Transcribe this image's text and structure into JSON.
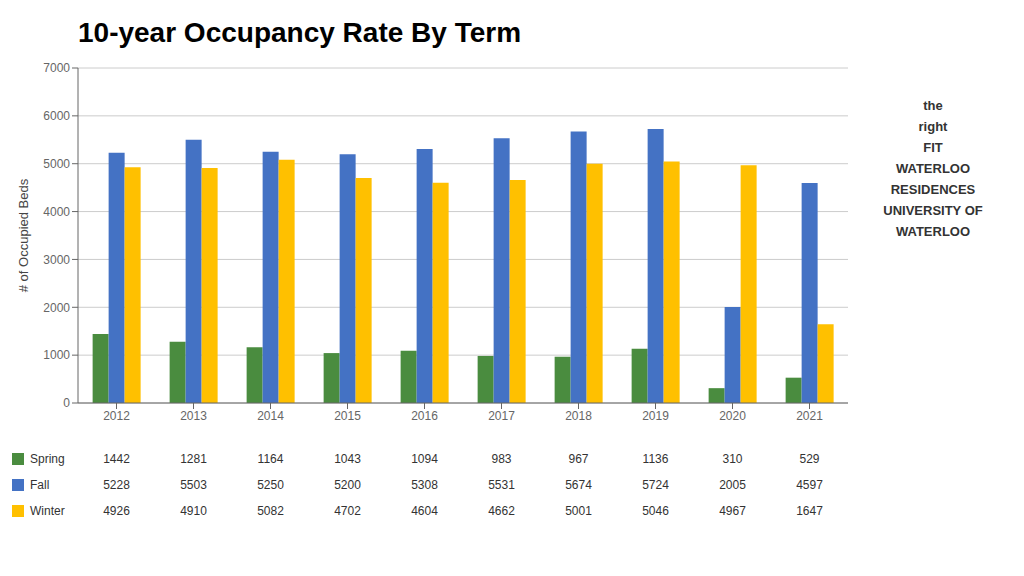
{
  "chart_data": {
    "type": "bar",
    "title": "10-year Occupancy Rate By Term",
    "ylabel": "# of Occupied Beds",
    "categories": [
      "2012",
      "2013",
      "2014",
      "2015",
      "2016",
      "2017",
      "2018",
      "2019",
      "2020",
      "2021"
    ],
    "series": [
      {
        "name": "Spring",
        "color": "#4a8c3f",
        "values": [
          1442,
          1281,
          1164,
          1043,
          1094,
          983,
          967,
          1136,
          310,
          529
        ]
      },
      {
        "name": "Fall",
        "color": "#4472c4",
        "values": [
          5228,
          5503,
          5250,
          5200,
          5308,
          5531,
          5674,
          5724,
          2005,
          4597
        ]
      },
      {
        "name": "Winter",
        "color": "#ffc000",
        "values": [
          4926,
          4910,
          5082,
          4702,
          4604,
          4662,
          5001,
          5046,
          4967,
          1647
        ]
      }
    ],
    "ylim": [
      0,
      7000
    ],
    "yticks": [
      0,
      1000,
      2000,
      3000,
      4000,
      5000,
      6000,
      7000
    ],
    "grid": true,
    "legend": "bottom",
    "annotations": [
      "the",
      "right",
      "FIT",
      "WATERLOO",
      "RESIDENCES",
      "UNIVERSITY OF",
      "WATERLOO"
    ]
  }
}
